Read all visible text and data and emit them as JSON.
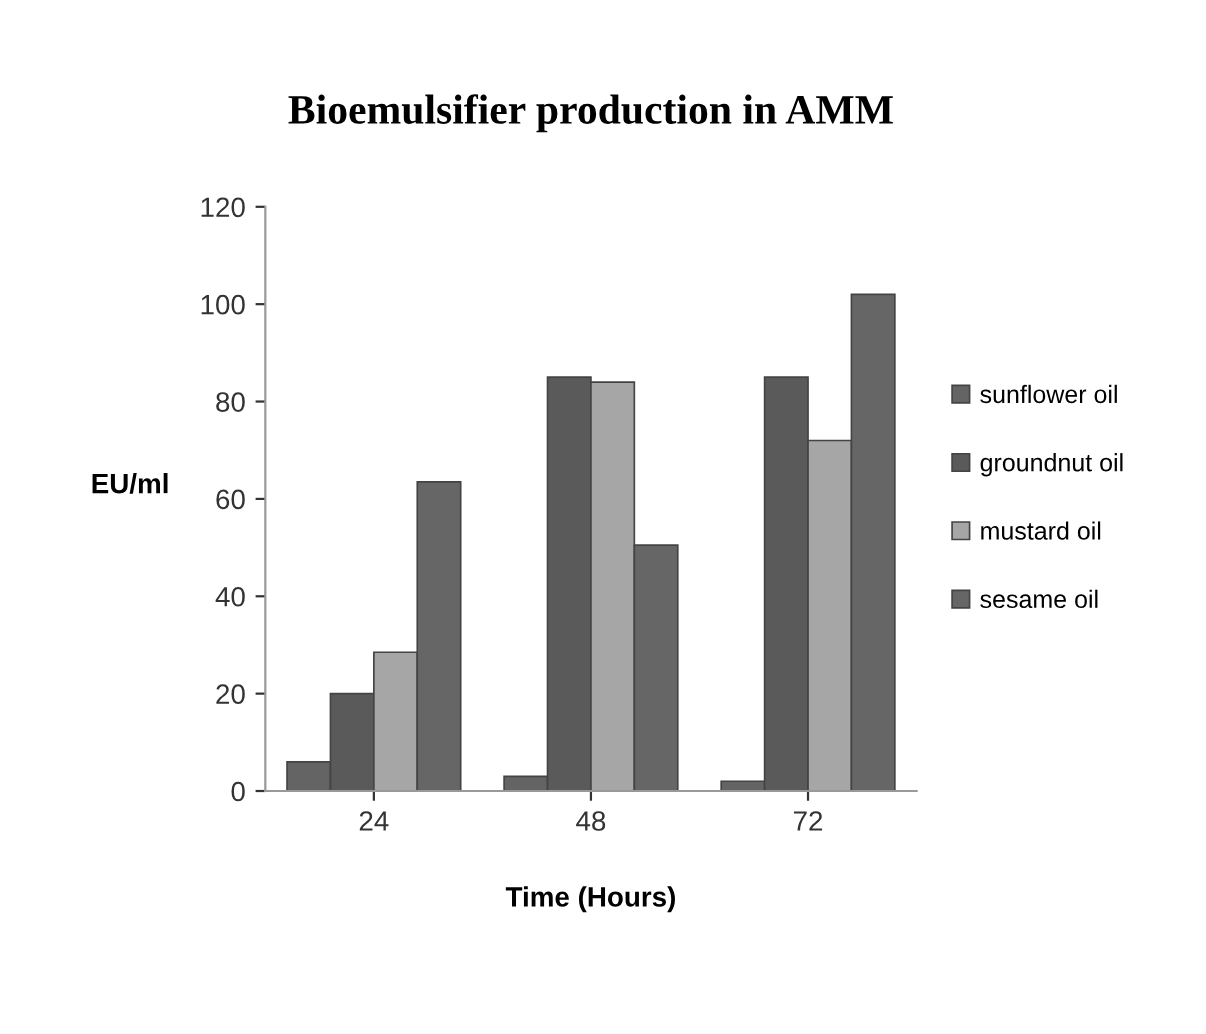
{
  "chart_data": {
    "type": "bar",
    "title": "Bioemulsifier production in AMM",
    "xlabel": "Time (Hours)",
    "ylabel": "EU/ml",
    "categories": [
      "24",
      "48",
      "72"
    ],
    "series": [
      {
        "name": "sunflower oil",
        "color": "#646464",
        "values": [
          6,
          3,
          2
        ]
      },
      {
        "name": "groundnut oil",
        "color": "#5a5a5a",
        "values": [
          20,
          85,
          85
        ]
      },
      {
        "name": "mustard oil",
        "color": "#a6a6a6",
        "values": [
          28.5,
          84,
          72
        ]
      },
      {
        "name": "sesame oil",
        "color": "#666666",
        "values": [
          63.5,
          50.5,
          102
        ]
      }
    ],
    "ylim": [
      0,
      120
    ],
    "yticks": [
      0,
      20,
      40,
      60,
      80,
      100,
      120
    ],
    "grid": false,
    "legend": "right"
  }
}
